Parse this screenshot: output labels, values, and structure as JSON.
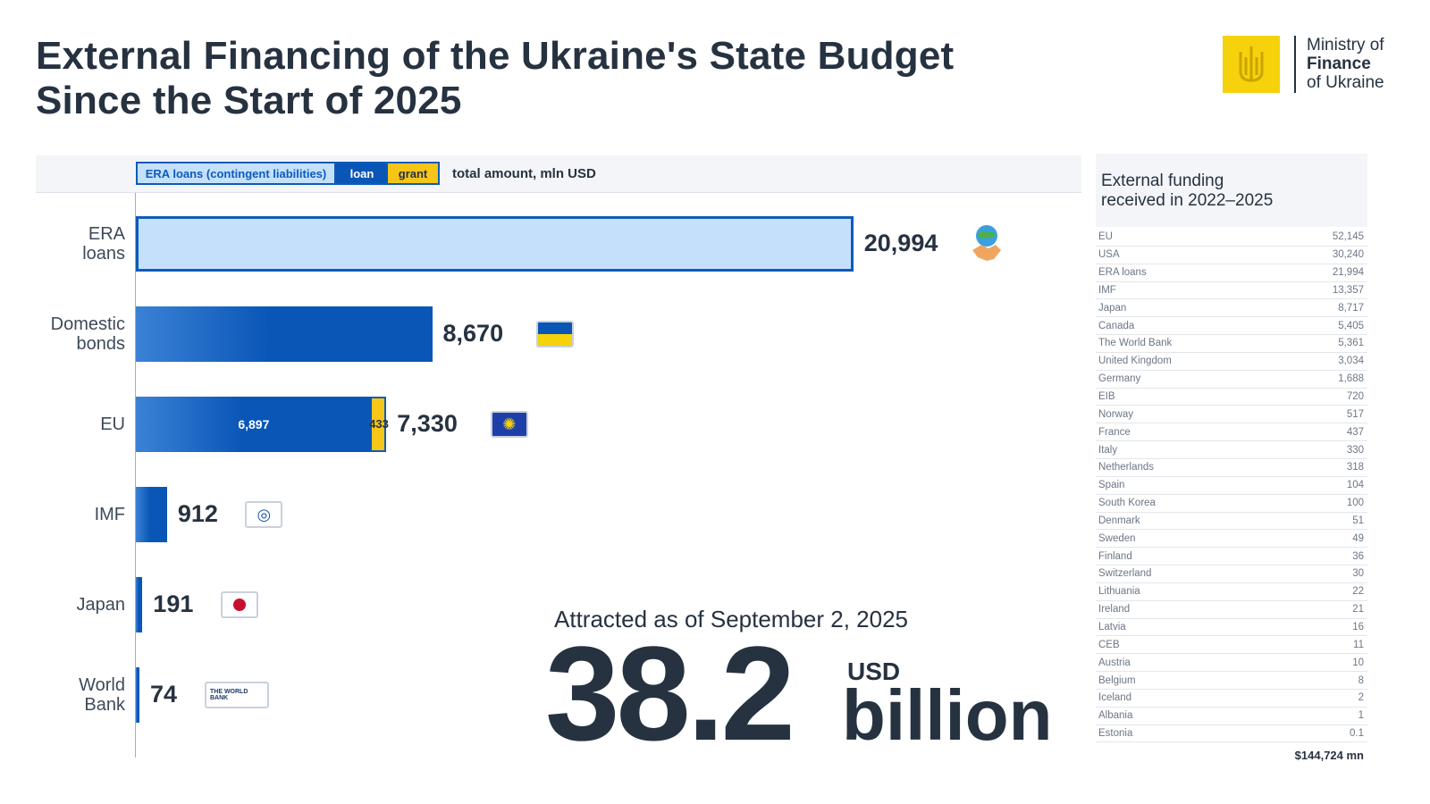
{
  "header": {
    "title_line1": "External Financing of the Ukraine's State Budget",
    "title_line2": "Since the Start of 2025"
  },
  "logo": {
    "line1": "Ministry of",
    "line2": "Finance",
    "line3": "of Ukraine",
    "icon": "trident-emblem-icon"
  },
  "legend": {
    "era": "ERA loans (contingent liabilities)",
    "loan": "loan",
    "grant": "grant",
    "total": "total amount, mln USD"
  },
  "colors": {
    "loan": "#0a56b7",
    "grant": "#f5c518",
    "era": "#c4e0fb",
    "text": "#263240"
  },
  "chart_data": {
    "type": "bar",
    "orientation": "horizontal",
    "stacked": true,
    "unit": "total amount, mln USD",
    "categories": [
      "ERA loans",
      "Domestic bonds",
      "EU",
      "IMF",
      "Japan",
      "World Bank"
    ],
    "category_labels": [
      [
        "ERA",
        "loans"
      ],
      [
        "Domestic",
        "bonds"
      ],
      [
        "EU"
      ],
      [
        "IMF"
      ],
      [
        "Japan"
      ],
      [
        "World",
        "Bank"
      ]
    ],
    "series": [
      {
        "name": "ERA loans (contingent liabilities)",
        "values": [
          20994,
          0,
          0,
          0,
          0,
          0
        ]
      },
      {
        "name": "loan",
        "values": [
          0,
          8670,
          6897,
          912,
          191,
          74
        ]
      },
      {
        "name": "grant",
        "values": [
          0,
          0,
          433,
          0,
          0,
          0
        ]
      }
    ],
    "totals": [
      "20,994",
      "8,670",
      "7,330",
      "912",
      "191",
      "74"
    ],
    "segment_labels": {
      "eu_loan": "6,897",
      "eu_grant": "433"
    },
    "xlim": [
      0,
      21000
    ],
    "grid": false,
    "legend_position": "top"
  },
  "icons": {
    "era": "handshake-globe-icon",
    "domestic": "ukraine-flag-icon",
    "eu": "eu-flag-icon",
    "imf": "imf-logo-icon",
    "japan": "japan-flag-icon",
    "wb": "world-bank-logo-icon",
    "wb_text": "THE WORLD BANK"
  },
  "summary": {
    "attracted": "Attracted as of September 2, 2025",
    "number": "38.2",
    "currency": "USD",
    "scale": "billion"
  },
  "side_table": {
    "title_line1": "External funding",
    "title_line2": "received in 2022–2025",
    "rows": [
      {
        "name": "EU",
        "value": "52,145"
      },
      {
        "name": "USA",
        "value": "30,240"
      },
      {
        "name": "ERA loans",
        "value": "21,994"
      },
      {
        "name": "IMF",
        "value": "13,357"
      },
      {
        "name": "Japan",
        "value": "8,717"
      },
      {
        "name": "Canada",
        "value": "5,405"
      },
      {
        "name": "The World Bank",
        "value": "5,361"
      },
      {
        "name": "United Kingdom",
        "value": "3,034"
      },
      {
        "name": "Germany",
        "value": "1,688"
      },
      {
        "name": "EIB",
        "value": "720"
      },
      {
        "name": "Norway",
        "value": "517"
      },
      {
        "name": "France",
        "value": "437"
      },
      {
        "name": "Italy",
        "value": "330"
      },
      {
        "name": "Netherlands",
        "value": "318"
      },
      {
        "name": "Spain",
        "value": "104"
      },
      {
        "name": "South Korea",
        "value": "100"
      },
      {
        "name": "Denmark",
        "value": "51"
      },
      {
        "name": "Sweden",
        "value": "49"
      },
      {
        "name": "Finland",
        "value": "36"
      },
      {
        "name": "Switzerland",
        "value": "30"
      },
      {
        "name": "Lithuania",
        "value": "22"
      },
      {
        "name": "Ireland",
        "value": "21"
      },
      {
        "name": "Latvia",
        "value": "16"
      },
      {
        "name": "CEB",
        "value": "11"
      },
      {
        "name": "Austria",
        "value": "10"
      },
      {
        "name": "Belgium",
        "value": "8"
      },
      {
        "name": "Iceland",
        "value": "2"
      },
      {
        "name": "Albania",
        "value": "1"
      },
      {
        "name": "Estonia",
        "value": "0.1"
      }
    ],
    "total": "$144,724 mn"
  }
}
